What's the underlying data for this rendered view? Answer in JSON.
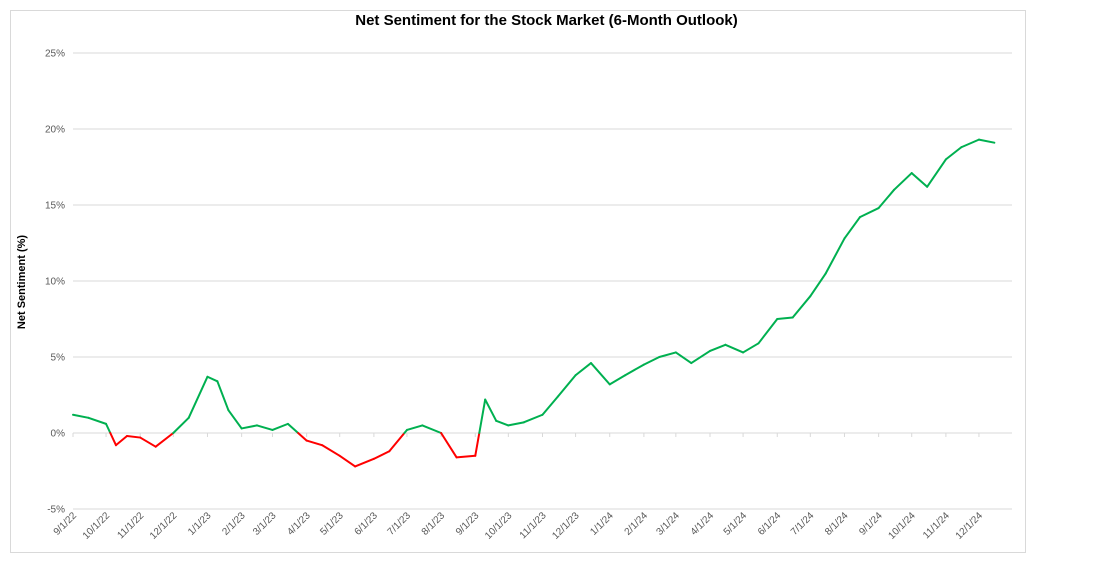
{
  "chart_data": {
    "type": "line",
    "title": "Net Sentiment for the Stock Market (6-Month Outlook)",
    "xlabel": "",
    "ylabel": "Net Sentiment (%)",
    "ylim": [
      -5,
      25
    ],
    "yticks": [
      -5,
      0,
      5,
      10,
      15,
      20,
      25
    ],
    "ytick_labels": [
      "-5%",
      "0%",
      "5%",
      "10%",
      "15%",
      "20%",
      "25%"
    ],
    "x_tick_labels": [
      "9/1/22",
      "10/1/22",
      "11/1/22",
      "12/1/22",
      "1/1/23",
      "2/1/23",
      "3/1/23",
      "4/1/23",
      "5/1/23",
      "6/1/23",
      "7/1/23",
      "8/1/23",
      "9/1/23",
      "10/1/23",
      "11/1/23",
      "12/1/23",
      "1/1/24",
      "2/1/24",
      "3/1/24",
      "4/1/24",
      "5/1/24",
      "6/1/24",
      "7/1/24",
      "8/1/24",
      "9/1/24",
      "10/1/24",
      "11/1/24",
      "12/1/24"
    ],
    "grid": true,
    "positive_color": "#00b050",
    "negative_color": "#ff0000",
    "gridline_color": "#d9d9d9",
    "series": [
      {
        "x": [
          "9/1/22",
          "9/15/22",
          "10/1/22",
          "10/10/22",
          "10/20/22",
          "11/1/22",
          "11/15/22",
          "12/1/22",
          "12/15/22",
          "1/1/23",
          "1/10/23",
          "1/20/23",
          "2/1/23",
          "2/15/23",
          "3/1/23",
          "3/15/23",
          "4/1/23",
          "4/15/23",
          "5/1/23",
          "5/15/23",
          "6/1/23",
          "6/15/23",
          "7/1/23",
          "7/15/23",
          "8/1/23",
          "8/15/23",
          "9/1/23",
          "9/10/23",
          "9/20/23",
          "10/1/23",
          "10/15/23",
          "11/1/23",
          "11/15/23",
          "12/1/23",
          "12/15/23",
          "1/1/24",
          "1/15/24",
          "2/1/24",
          "2/15/24",
          "3/1/24",
          "3/15/24",
          "4/1/24",
          "4/15/24",
          "5/1/24",
          "5/15/24",
          "6/1/24",
          "6/15/24",
          "7/1/24",
          "7/15/24",
          "8/1/24",
          "8/15/24",
          "9/1/24",
          "9/15/24",
          "10/1/24",
          "10/15/24",
          "11/1/24",
          "11/15/24",
          "12/1/24",
          "12/15/24"
        ],
        "y": [
          1.2,
          1.0,
          0.6,
          -0.8,
          -0.2,
          -0.3,
          -0.9,
          0.0,
          1.0,
          3.7,
          3.4,
          1.5,
          0.3,
          0.5,
          0.2,
          0.6,
          -0.5,
          -0.8,
          -1.5,
          -2.2,
          -1.7,
          -1.2,
          0.2,
          0.5,
          0.0,
          -1.6,
          -1.5,
          2.2,
          0.8,
          0.5,
          0.7,
          1.2,
          2.4,
          3.8,
          4.6,
          3.2,
          3.8,
          4.5,
          5.0,
          5.3,
          4.6,
          5.4,
          5.8,
          5.3,
          5.9,
          7.5,
          7.6,
          9.0,
          10.5,
          12.8,
          14.2,
          14.8,
          16.0,
          17.1,
          16.2,
          18.0,
          18.8,
          19.3,
          19.1
        ]
      }
    ]
  }
}
